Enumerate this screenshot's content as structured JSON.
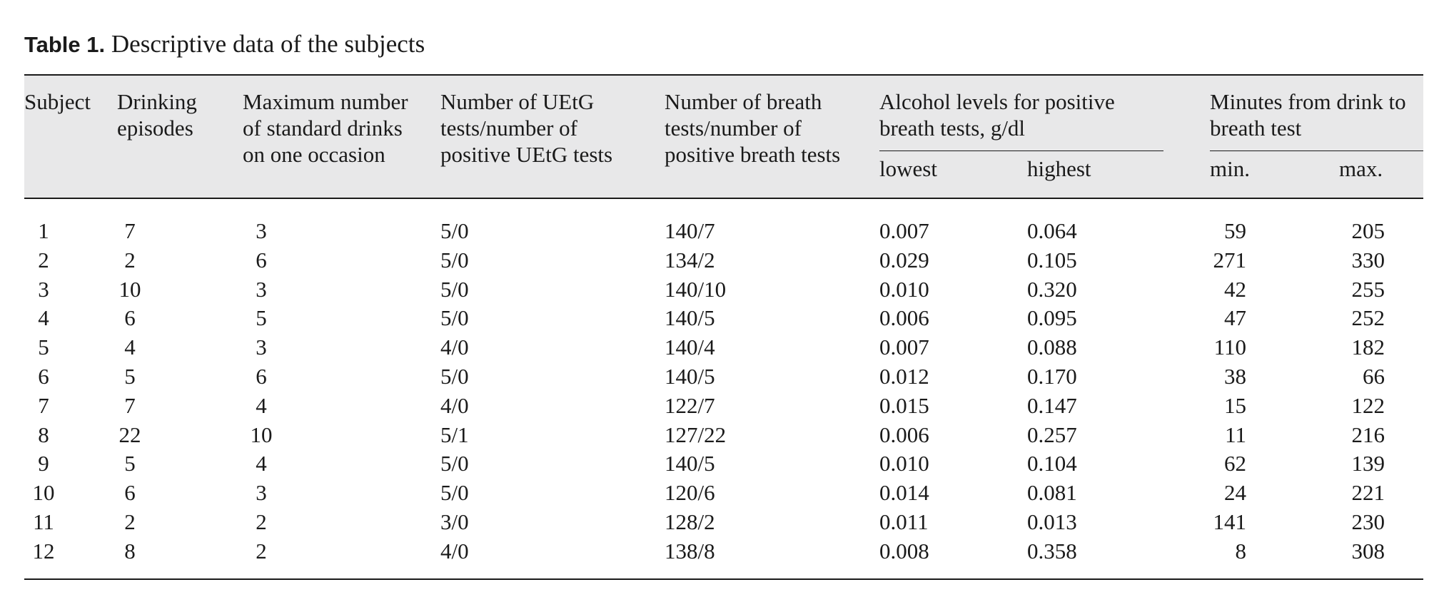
{
  "caption": {
    "label": "Table 1.",
    "title": "Descriptive data of the subjects"
  },
  "headers": {
    "subject": [
      "Subject"
    ],
    "drinking": [
      "Drinking",
      "episodes"
    ],
    "max_drinks": [
      "Maximum number",
      "of standard drinks",
      "on one occasion"
    ],
    "uetg": [
      "Number of UEtG",
      "tests/number of",
      "positive UEtG tests"
    ],
    "breath": [
      "Number of breath",
      "tests/number of",
      "positive breath tests"
    ],
    "alcohol": [
      "Alcohol levels for positive",
      "breath tests, g/dl"
    ],
    "minutes": [
      "Minutes from drink to",
      "breath test"
    ],
    "alcohol_sub": [
      "lowest",
      "highest"
    ],
    "minutes_sub": [
      "min.",
      "max."
    ]
  },
  "rows": [
    [
      "1",
      "7",
      "3",
      "5/0",
      "140/7",
      "0.007",
      "0.064",
      "59",
      "205"
    ],
    [
      "2",
      "2",
      "6",
      "5/0",
      "134/2",
      "0.029",
      "0.105",
      "271",
      "330"
    ],
    [
      "3",
      "10",
      "3",
      "5/0",
      "140/10",
      "0.010",
      "0.320",
      "42",
      "255"
    ],
    [
      "4",
      "6",
      "5",
      "5/0",
      "140/5",
      "0.006",
      "0.095",
      "47",
      "252"
    ],
    [
      "5",
      "4",
      "3",
      "4/0",
      "140/4",
      "0.007",
      "0.088",
      "110",
      "182"
    ],
    [
      "6",
      "5",
      "6",
      "5/0",
      "140/5",
      "0.012",
      "0.170",
      "38",
      "66"
    ],
    [
      "7",
      "7",
      "4",
      "4/0",
      "122/7",
      "0.015",
      "0.147",
      "15",
      "122"
    ],
    [
      "8",
      "22",
      "10",
      "5/1",
      "127/22",
      "0.006",
      "0.257",
      "11",
      "216"
    ],
    [
      "9",
      "5",
      "4",
      "5/0",
      "140/5",
      "0.010",
      "0.104",
      "62",
      "139"
    ],
    [
      "10",
      "6",
      "3",
      "5/0",
      "120/6",
      "0.014",
      "0.081",
      "24",
      "221"
    ],
    [
      "11",
      "2",
      "2",
      "3/0",
      "128/2",
      "0.011",
      "0.013",
      "141",
      "230"
    ],
    [
      "12",
      "8",
      "2",
      "4/0",
      "138/8",
      "0.008",
      "0.358",
      "8",
      "308"
    ]
  ]
}
